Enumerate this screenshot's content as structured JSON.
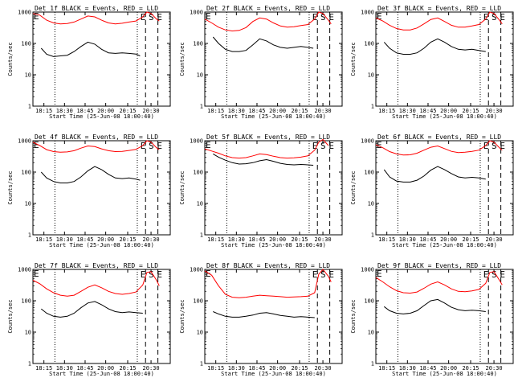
{
  "figure": {
    "x_ticks": [
      "18:15",
      "18:30",
      "18:45",
      "20:00",
      "20:15",
      "20:30"
    ],
    "y_ticks": [
      "1",
      "10",
      "100",
      "1000"
    ],
    "ylabel": "Counts/sec",
    "xlabel": "Start Time (25-Jun-08 18:00:40)",
    "markers": [
      "E",
      "S",
      "E"
    ]
  },
  "chart_data": [
    {
      "type": "line",
      "title": "Det 1f BLACK = Events, RED = LLD",
      "xlabel": "Start Time (25-Jun-08 18:00:40)",
      "ylabel": "Counts/sec",
      "y_log": true,
      "ylim": [
        1,
        1000
      ],
      "series": [
        {
          "color": "#000000",
          "x": [
            0.06,
            0.1,
            0.15,
            0.2,
            0.25,
            0.3,
            0.35,
            0.4,
            0.45,
            0.5,
            0.55,
            0.6,
            0.65,
            0.7,
            0.75,
            0.78
          ],
          "y": [
            70,
            45,
            38,
            40,
            42,
            55,
            80,
            110,
            95,
            65,
            50,
            48,
            50,
            48,
            46,
            40
          ]
        },
        {
          "color": "#ff0000",
          "x": [
            0,
            0.05,
            0.1,
            0.15,
            0.2,
            0.25,
            0.3,
            0.35,
            0.4,
            0.45,
            0.5,
            0.55,
            0.6,
            0.65,
            0.7,
            0.75,
            0.8,
            0.83,
            0.86,
            0.9,
            0.92
          ],
          "y": [
            900,
            800,
            550,
            450,
            420,
            430,
            480,
            600,
            750,
            700,
            550,
            450,
            420,
            440,
            480,
            520,
            700,
            1000,
            900,
            600,
            520
          ]
        }
      ]
    },
    {
      "type": "line",
      "title": "Det 2f BLACK = Events, RED = LLD",
      "xlabel": "Start Time (25-Jun-08 18:00:40)",
      "ylabel": "Counts/sec",
      "y_log": true,
      "ylim": [
        1,
        1000
      ],
      "series": [
        {
          "color": "#000000",
          "x": [
            0.06,
            0.1,
            0.15,
            0.2,
            0.25,
            0.3,
            0.35,
            0.4,
            0.45,
            0.5,
            0.55,
            0.6,
            0.65,
            0.7,
            0.75,
            0.79
          ],
          "y": [
            160,
            100,
            65,
            55,
            55,
            60,
            90,
            140,
            120,
            90,
            75,
            70,
            75,
            80,
            75,
            70
          ]
        },
        {
          "color": "#ff0000",
          "x": [
            0,
            0.05,
            0.1,
            0.15,
            0.2,
            0.25,
            0.3,
            0.35,
            0.4,
            0.45,
            0.5,
            0.55,
            0.6,
            0.65,
            0.7,
            0.75,
            0.8,
            0.83,
            0.86,
            0.9,
            0.92
          ],
          "y": [
            600,
            450,
            330,
            270,
            250,
            260,
            320,
            500,
            650,
            600,
            450,
            360,
            330,
            340,
            370,
            400,
            600,
            1000,
            900,
            550,
            420
          ]
        }
      ]
    },
    {
      "type": "line",
      "title": "Det 3f BLACK = Events, RED = LLD",
      "xlabel": "Start Time (25-Jun-08 18:00:40)",
      "ylabel": "Counts/sec",
      "y_log": true,
      "ylim": [
        1,
        1000
      ],
      "series": [
        {
          "color": "#000000",
          "x": [
            0.06,
            0.1,
            0.15,
            0.2,
            0.25,
            0.3,
            0.35,
            0.4,
            0.45,
            0.5,
            0.55,
            0.6,
            0.65,
            0.7,
            0.75,
            0.8
          ],
          "y": [
            110,
            70,
            50,
            45,
            45,
            50,
            70,
            110,
            140,
            110,
            80,
            65,
            62,
            65,
            60,
            55
          ]
        },
        {
          "color": "#ff0000",
          "x": [
            0,
            0.05,
            0.1,
            0.15,
            0.2,
            0.25,
            0.3,
            0.35,
            0.4,
            0.45,
            0.5,
            0.55,
            0.6,
            0.65,
            0.7,
            0.75,
            0.8,
            0.83,
            0.86,
            0.9,
            0.92
          ],
          "y": [
            650,
            520,
            380,
            300,
            270,
            270,
            310,
            420,
            580,
            650,
            500,
            380,
            330,
            330,
            360,
            400,
            600,
            1000,
            900,
            550,
            420
          ]
        }
      ]
    },
    {
      "type": "line",
      "title": "Det 4f BLACK = Events, RED = LLD",
      "xlabel": "Start Time (25-Jun-08 18:00:40)",
      "ylabel": "Counts/sec",
      "y_log": true,
      "ylim": [
        1,
        1000
      ],
      "series": [
        {
          "color": "#000000",
          "x": [
            0.06,
            0.1,
            0.15,
            0.2,
            0.25,
            0.3,
            0.35,
            0.4,
            0.45,
            0.5,
            0.55,
            0.6,
            0.65,
            0.7,
            0.75,
            0.78
          ],
          "y": [
            100,
            65,
            50,
            45,
            45,
            50,
            70,
            110,
            150,
            120,
            85,
            65,
            62,
            65,
            60,
            55
          ]
        },
        {
          "color": "#ff0000",
          "x": [
            0,
            0.05,
            0.1,
            0.15,
            0.2,
            0.25,
            0.3,
            0.35,
            0.4,
            0.45,
            0.5,
            0.55,
            0.6,
            0.65,
            0.7,
            0.75,
            0.8,
            0.83,
            0.86,
            0.9,
            0.92
          ],
          "y": [
            900,
            700,
            520,
            450,
            430,
            440,
            480,
            580,
            680,
            650,
            550,
            480,
            450,
            460,
            490,
            530,
            700,
            1000,
            900,
            600,
            520
          ]
        }
      ]
    },
    {
      "type": "line",
      "title": "Det 5f BLACK = Events, RED = LLD",
      "xlabel": "Start Time (25-Jun-08 18:00:40)",
      "ylabel": "Counts/sec",
      "y_log": true,
      "ylim": [
        1,
        1000
      ],
      "series": [
        {
          "color": "#000000",
          "x": [
            0.06,
            0.1,
            0.15,
            0.2,
            0.25,
            0.3,
            0.35,
            0.4,
            0.45,
            0.5,
            0.55,
            0.6,
            0.65,
            0.7,
            0.75,
            0.79
          ],
          "y": [
            380,
            300,
            240,
            200,
            180,
            185,
            200,
            230,
            250,
            220,
            190,
            175,
            170,
            175,
            170,
            165
          ]
        },
        {
          "color": "#ff0000",
          "x": [
            0,
            0.05,
            0.1,
            0.15,
            0.2,
            0.25,
            0.3,
            0.35,
            0.4,
            0.45,
            0.5,
            0.55,
            0.6,
            0.65,
            0.7,
            0.75,
            0.8,
            0.83,
            0.86,
            0.9
          ],
          "y": [
            550,
            470,
            400,
            330,
            290,
            280,
            290,
            330,
            380,
            360,
            320,
            290,
            280,
            285,
            300,
            330,
            500,
            900,
            1100,
            700
          ]
        }
      ]
    },
    {
      "type": "line",
      "title": "Det 6f BLACK = Events, RED = LLD",
      "xlabel": "Start Time (25-Jun-08 18:00:40)",
      "ylabel": "Counts/sec",
      "y_log": true,
      "ylim": [
        1,
        1000
      ],
      "series": [
        {
          "color": "#000000",
          "x": [
            0.06,
            0.1,
            0.15,
            0.2,
            0.25,
            0.3,
            0.35,
            0.4,
            0.45,
            0.5,
            0.55,
            0.6,
            0.65,
            0.7,
            0.75,
            0.8
          ],
          "y": [
            120,
            70,
            52,
            48,
            48,
            55,
            75,
            115,
            150,
            120,
            90,
            70,
            65,
            68,
            65,
            60
          ]
        },
        {
          "color": "#ff0000",
          "x": [
            0,
            0.05,
            0.1,
            0.15,
            0.2,
            0.25,
            0.3,
            0.35,
            0.4,
            0.45,
            0.5,
            0.55,
            0.6,
            0.65,
            0.7,
            0.75,
            0.8,
            0.83,
            0.86,
            0.9,
            0.92
          ],
          "y": [
            750,
            600,
            450,
            380,
            350,
            355,
            400,
            500,
            620,
            680,
            560,
            460,
            420,
            430,
            460,
            500,
            700,
            1000,
            900,
            600,
            500
          ]
        }
      ]
    },
    {
      "type": "line",
      "title": "Det 7f BLACK = Events, RED = LLD",
      "xlabel": "Start Time (25-Jun-08 18:00:40)",
      "ylabel": "Counts/sec",
      "y_log": true,
      "ylim": [
        1,
        1000
      ],
      "series": [
        {
          "color": "#000000",
          "x": [
            0.06,
            0.1,
            0.15,
            0.2,
            0.25,
            0.3,
            0.35,
            0.4,
            0.45,
            0.5,
            0.55,
            0.6,
            0.65,
            0.7,
            0.75,
            0.8
          ],
          "y": [
            55,
            40,
            32,
            30,
            32,
            40,
            60,
            85,
            95,
            75,
            55,
            45,
            42,
            44,
            42,
            40
          ]
        },
        {
          "color": "#ff0000",
          "x": [
            0,
            0.05,
            0.1,
            0.15,
            0.2,
            0.25,
            0.3,
            0.35,
            0.4,
            0.45,
            0.5,
            0.55,
            0.6,
            0.65,
            0.7,
            0.75,
            0.8,
            0.83,
            0.86,
            0.9,
            0.92
          ],
          "y": [
            450,
            350,
            240,
            180,
            150,
            140,
            150,
            200,
            270,
            320,
            260,
            200,
            170,
            160,
            170,
            190,
            320,
            800,
            850,
            450,
            300
          ]
        }
      ]
    },
    {
      "type": "line",
      "title": "Det 8f BLACK = Events, RED = LLD",
      "xlabel": "Start Time (25-Jun-08 18:00:40)",
      "ylabel": "Counts/sec",
      "y_log": true,
      "ylim": [
        1,
        1000
      ],
      "series": [
        {
          "color": "#000000",
          "x": [
            0.06,
            0.1,
            0.15,
            0.2,
            0.25,
            0.3,
            0.35,
            0.4,
            0.45,
            0.5,
            0.55,
            0.6,
            0.65,
            0.7,
            0.75,
            0.8
          ],
          "y": [
            45,
            38,
            32,
            30,
            30,
            32,
            35,
            40,
            42,
            38,
            34,
            32,
            30,
            31,
            30,
            29
          ]
        },
        {
          "color": "#ff0000",
          "x": [
            0,
            0.05,
            0.1,
            0.15,
            0.2,
            0.25,
            0.3,
            0.35,
            0.4,
            0.45,
            0.5,
            0.55,
            0.6,
            0.65,
            0.7,
            0.75,
            0.8,
            0.83,
            0.86,
            0.9,
            0.92
          ],
          "y": [
            900,
            650,
            300,
            160,
            130,
            125,
            130,
            140,
            150,
            145,
            140,
            135,
            130,
            132,
            135,
            140,
            180,
            700,
            1000,
            600,
            400
          ]
        }
      ]
    },
    {
      "type": "line",
      "title": "Det 9f BLACK = Events, RED = LLD",
      "xlabel": "Start Time (25-Jun-08 18:00:40)",
      "ylabel": "Counts/sec",
      "y_log": true,
      "ylim": [
        1,
        1000
      ],
      "series": [
        {
          "color": "#000000",
          "x": [
            0.06,
            0.1,
            0.15,
            0.2,
            0.25,
            0.3,
            0.35,
            0.4,
            0.45,
            0.5,
            0.55,
            0.6,
            0.65,
            0.7,
            0.75,
            0.8
          ],
          "y": [
            65,
            48,
            40,
            38,
            40,
            48,
            70,
            100,
            110,
            85,
            62,
            52,
            48,
            50,
            48,
            45
          ]
        },
        {
          "color": "#ff0000",
          "x": [
            0,
            0.05,
            0.1,
            0.15,
            0.2,
            0.25,
            0.3,
            0.35,
            0.4,
            0.45,
            0.5,
            0.55,
            0.6,
            0.65,
            0.7,
            0.75,
            0.8,
            0.83,
            0.86,
            0.9,
            0.92
          ],
          "y": [
            550,
            400,
            280,
            210,
            180,
            175,
            190,
            250,
            340,
            400,
            320,
            240,
            200,
            195,
            205,
            230,
            360,
            800,
            850,
            450,
            320
          ]
        }
      ]
    }
  ]
}
